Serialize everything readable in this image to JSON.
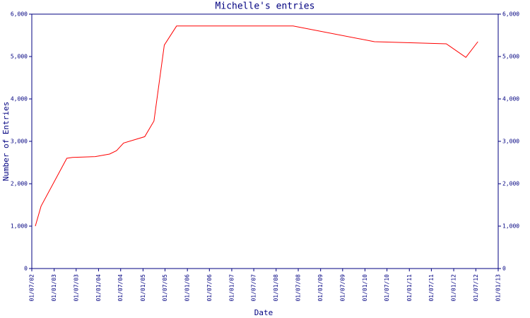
{
  "chart_data": {
    "type": "line",
    "title": "Michelle's entries",
    "x_label": "Date",
    "y_label": "Number of Entries",
    "x": [
      "30/07/02",
      "15/09/02",
      "15/04/03",
      "01/06/03",
      "05/12/03",
      "01/04/04",
      "28/05/04",
      "25/07/04",
      "15/01/05",
      "01/04/05",
      "25/06/05",
      "04/10/05",
      "20/05/08",
      "20/03/10",
      "01/11/11",
      "10/04/12",
      "18/07/12"
    ],
    "series": [
      {
        "name": "Michelle",
        "color": "#ff0000",
        "values": [
          1000,
          1470,
          2600,
          2620,
          2640,
          2700,
          2780,
          2960,
          3110,
          3480,
          5270,
          5720,
          5720,
          5350,
          5300,
          4980,
          5350
        ]
      }
    ],
    "xlim": [
      "01/07/02",
      "01/01/13"
    ],
    "xticks": [
      "01/07/02",
      "01/01/03",
      "01/07/03",
      "01/01/04",
      "01/07/04",
      "01/01/05",
      "01/07/05",
      "01/01/06",
      "01/07/06",
      "01/01/07",
      "01/07/07",
      "01/01/08",
      "01/07/08",
      "01/01/09",
      "01/07/09",
      "01/01/10",
      "01/07/10",
      "01/01/11",
      "01/07/11",
      "01/01/12",
      "01/07/12",
      "01/01/13"
    ],
    "ylim": [
      0,
      6000
    ],
    "yticks": [
      0,
      {
        "value": 1000,
        "label": "1,000"
      },
      {
        "value": 2000,
        "label": "2,000"
      },
      {
        "value": 3000,
        "label": "3,000"
      },
      {
        "value": 4000,
        "label": "4,000"
      },
      {
        "value": 5000,
        "label": "5,000"
      },
      {
        "value": 6000,
        "label": "6,000"
      }
    ],
    "axis_color": "#000080"
  }
}
